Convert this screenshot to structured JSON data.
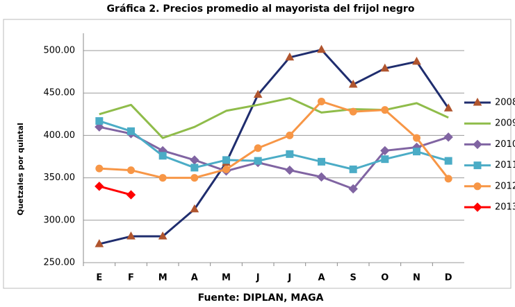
{
  "chart_data": {
    "type": "line",
    "title": "Gráfica 2.  Precios promedio al mayorista del frijol negro",
    "y_label": "Quetzales por quintal",
    "source": "Fuente: DIPLAN, MAGA",
    "categories": [
      "E",
      "F",
      "M",
      "A",
      "M",
      "J",
      "J",
      "A",
      "S",
      "O",
      "N",
      "D"
    ],
    "ylim": [
      250,
      500
    ],
    "yticks": [
      {
        "value": 250,
        "label": "250.00"
      },
      {
        "value": 300,
        "label": "300.00"
      },
      {
        "value": 350,
        "label": "350.00"
      },
      {
        "value": 400,
        "label": "400.00"
      },
      {
        "value": 450,
        "label": "450.00"
      },
      {
        "value": 500,
        "label": "500.00"
      }
    ],
    "grid": true,
    "legend": "right",
    "series": [
      {
        "name": "2008",
        "color": "#1f2d6e",
        "marker": "triangle",
        "marker_color": "#b0552e",
        "values": [
          272,
          281,
          281,
          313,
          368,
          448,
          492,
          501,
          460,
          479,
          487,
          432
        ]
      },
      {
        "name": "2009",
        "color": "#8fbc4a",
        "marker": "none",
        "marker_color": "#8fbc4a",
        "values": [
          425,
          436,
          397,
          410,
          429,
          436,
          444,
          427,
          431,
          430,
          438,
          421
        ]
      },
      {
        "name": "2010",
        "color": "#8064a2",
        "marker": "diamond",
        "marker_color": "#8064a2",
        "values": [
          410,
          402,
          382,
          371,
          358,
          368,
          359,
          351,
          337,
          382,
          386,
          398
        ]
      },
      {
        "name": "2011",
        "color": "#4bacc6",
        "marker": "square",
        "marker_color": "#4bacc6",
        "values": [
          417,
          405,
          376,
          362,
          371,
          370,
          378,
          369,
          360,
          372,
          381,
          370
        ]
      },
      {
        "name": "2012",
        "color": "#f79646",
        "marker": "circle",
        "marker_color": "#f79646",
        "values": [
          361,
          359,
          350,
          350,
          360,
          385,
          400,
          440,
          428,
          430,
          397,
          349
        ]
      },
      {
        "name": "2013",
        "color": "#ff0000",
        "marker": "diamond",
        "marker_color": "#ff0000",
        "values": [
          340,
          330,
          null,
          null,
          null,
          null,
          null,
          null,
          null,
          null,
          null,
          null
        ]
      }
    ]
  }
}
